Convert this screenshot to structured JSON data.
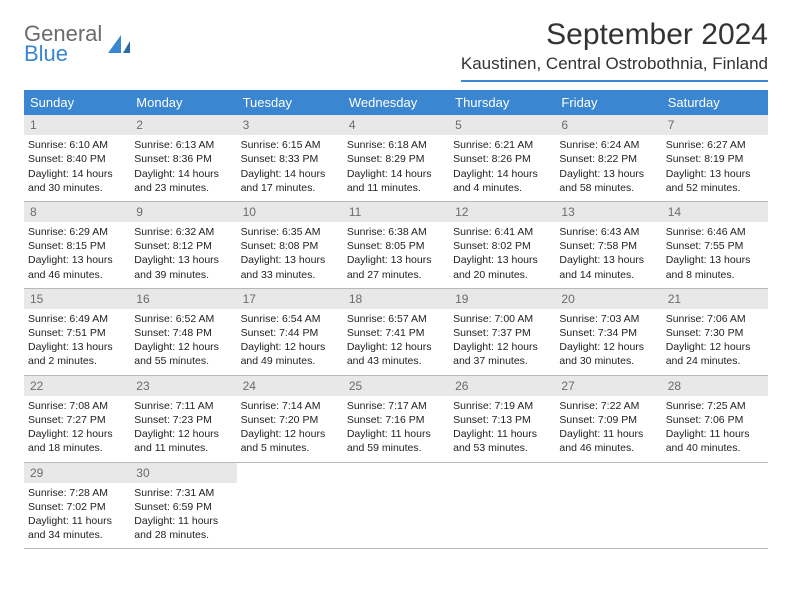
{
  "brand": {
    "line1": "General",
    "line2": "Blue"
  },
  "title": "September 2024",
  "location": "Kaustinen, Central Ostrobothnia, Finland",
  "colors": {
    "accent": "#3a86d0",
    "header_bg": "#e8e8e8",
    "text": "#222222",
    "muted": "#6b6b6b",
    "border": "#b8b8b8",
    "background": "#ffffff"
  },
  "typography": {
    "title_fontsize": 30,
    "location_fontsize": 17,
    "weekday_fontsize": 13,
    "daynum_fontsize": 12,
    "body_fontsize": 10.5
  },
  "weekdays": [
    "Sunday",
    "Monday",
    "Tuesday",
    "Wednesday",
    "Thursday",
    "Friday",
    "Saturday"
  ],
  "days": [
    {
      "n": 1,
      "sunrise": "6:10 AM",
      "sunset": "8:40 PM",
      "daylight": "14 hours and 30 minutes."
    },
    {
      "n": 2,
      "sunrise": "6:13 AM",
      "sunset": "8:36 PM",
      "daylight": "14 hours and 23 minutes."
    },
    {
      "n": 3,
      "sunrise": "6:15 AM",
      "sunset": "8:33 PM",
      "daylight": "14 hours and 17 minutes."
    },
    {
      "n": 4,
      "sunrise": "6:18 AM",
      "sunset": "8:29 PM",
      "daylight": "14 hours and 11 minutes."
    },
    {
      "n": 5,
      "sunrise": "6:21 AM",
      "sunset": "8:26 PM",
      "daylight": "14 hours and 4 minutes."
    },
    {
      "n": 6,
      "sunrise": "6:24 AM",
      "sunset": "8:22 PM",
      "daylight": "13 hours and 58 minutes."
    },
    {
      "n": 7,
      "sunrise": "6:27 AM",
      "sunset": "8:19 PM",
      "daylight": "13 hours and 52 minutes."
    },
    {
      "n": 8,
      "sunrise": "6:29 AM",
      "sunset": "8:15 PM",
      "daylight": "13 hours and 46 minutes."
    },
    {
      "n": 9,
      "sunrise": "6:32 AM",
      "sunset": "8:12 PM",
      "daylight": "13 hours and 39 minutes."
    },
    {
      "n": 10,
      "sunrise": "6:35 AM",
      "sunset": "8:08 PM",
      "daylight": "13 hours and 33 minutes."
    },
    {
      "n": 11,
      "sunrise": "6:38 AM",
      "sunset": "8:05 PM",
      "daylight": "13 hours and 27 minutes."
    },
    {
      "n": 12,
      "sunrise": "6:41 AM",
      "sunset": "8:02 PM",
      "daylight": "13 hours and 20 minutes."
    },
    {
      "n": 13,
      "sunrise": "6:43 AM",
      "sunset": "7:58 PM",
      "daylight": "13 hours and 14 minutes."
    },
    {
      "n": 14,
      "sunrise": "6:46 AM",
      "sunset": "7:55 PM",
      "daylight": "13 hours and 8 minutes."
    },
    {
      "n": 15,
      "sunrise": "6:49 AM",
      "sunset": "7:51 PM",
      "daylight": "13 hours and 2 minutes."
    },
    {
      "n": 16,
      "sunrise": "6:52 AM",
      "sunset": "7:48 PM",
      "daylight": "12 hours and 55 minutes."
    },
    {
      "n": 17,
      "sunrise": "6:54 AM",
      "sunset": "7:44 PM",
      "daylight": "12 hours and 49 minutes."
    },
    {
      "n": 18,
      "sunrise": "6:57 AM",
      "sunset": "7:41 PM",
      "daylight": "12 hours and 43 minutes."
    },
    {
      "n": 19,
      "sunrise": "7:00 AM",
      "sunset": "7:37 PM",
      "daylight": "12 hours and 37 minutes."
    },
    {
      "n": 20,
      "sunrise": "7:03 AM",
      "sunset": "7:34 PM",
      "daylight": "12 hours and 30 minutes."
    },
    {
      "n": 21,
      "sunrise": "7:06 AM",
      "sunset": "7:30 PM",
      "daylight": "12 hours and 24 minutes."
    },
    {
      "n": 22,
      "sunrise": "7:08 AM",
      "sunset": "7:27 PM",
      "daylight": "12 hours and 18 minutes."
    },
    {
      "n": 23,
      "sunrise": "7:11 AM",
      "sunset": "7:23 PM",
      "daylight": "12 hours and 11 minutes."
    },
    {
      "n": 24,
      "sunrise": "7:14 AM",
      "sunset": "7:20 PM",
      "daylight": "12 hours and 5 minutes."
    },
    {
      "n": 25,
      "sunrise": "7:17 AM",
      "sunset": "7:16 PM",
      "daylight": "11 hours and 59 minutes."
    },
    {
      "n": 26,
      "sunrise": "7:19 AM",
      "sunset": "7:13 PM",
      "daylight": "11 hours and 53 minutes."
    },
    {
      "n": 27,
      "sunrise": "7:22 AM",
      "sunset": "7:09 PM",
      "daylight": "11 hours and 46 minutes."
    },
    {
      "n": 28,
      "sunrise": "7:25 AM",
      "sunset": "7:06 PM",
      "daylight": "11 hours and 40 minutes."
    },
    {
      "n": 29,
      "sunrise": "7:28 AM",
      "sunset": "7:02 PM",
      "daylight": "11 hours and 34 minutes."
    },
    {
      "n": 30,
      "sunrise": "7:31 AM",
      "sunset": "6:59 PM",
      "daylight": "11 hours and 28 minutes."
    }
  ],
  "labels": {
    "sunrise_prefix": "Sunrise: ",
    "sunset_prefix": "Sunset: ",
    "daylight_prefix": "Daylight: "
  },
  "layout": {
    "columns": 7,
    "rows": 5,
    "first_day_column": 0,
    "trailing_empty": 5
  }
}
